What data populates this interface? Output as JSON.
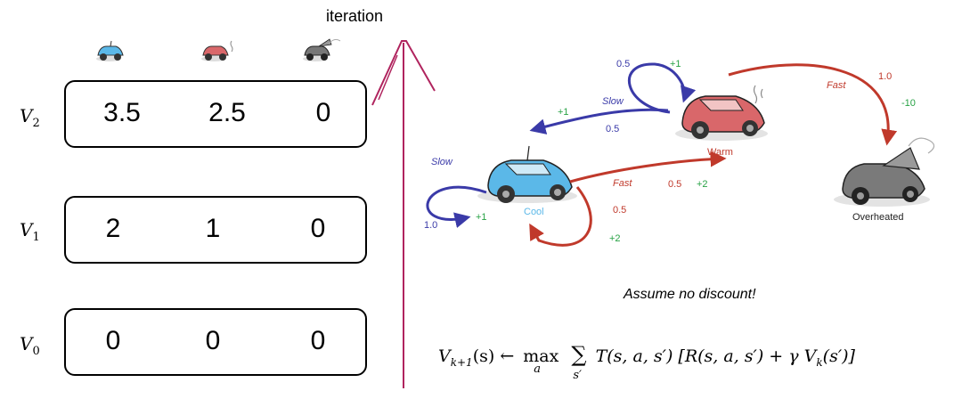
{
  "iteration_label": "iteration",
  "rows": [
    {
      "label": "V",
      "sub": "2",
      "values": [
        "3.5",
        "2.5",
        "0"
      ]
    },
    {
      "label": "V",
      "sub": "1",
      "values": [
        "2",
        "1",
        "0"
      ]
    },
    {
      "label": "V",
      "sub": "0",
      "values": [
        "0",
        "0",
        "0"
      ]
    }
  ],
  "states": {
    "cool": "Cool",
    "warm": "Warm",
    "overheated": "Overheated"
  },
  "actions": {
    "slow": "Slow",
    "fast": "Fast"
  },
  "edges": {
    "cool_slow_prob": "1.0",
    "cool_slow_reward": "+1",
    "cool_fast_prob1": "0.5",
    "cool_fast_reward1": "+2",
    "cool_fast_prob2": "0.5",
    "cool_fast_reward2": "+2",
    "warm_slow_prob1": "0.5",
    "warm_slow_reward1": "+1",
    "warm_slow_prob2": "0.5",
    "warm_slow_reward2": "+1",
    "warm_fast_prob": "1.0",
    "warm_fast_reward": "-10"
  },
  "note": "Assume no discount!",
  "formula": {
    "lhs": "V",
    "lhs_sub": "k+1",
    "lhs_arg": "(s) ← ",
    "max": "max",
    "max_sub": "a",
    "sum_sub": "s′",
    "body": "T(s, a, s′) [R(s, a, s′) + γ V",
    "body_sub": "k",
    "tail": "(s′)]"
  },
  "colors": {
    "blue": "#3a3aa8",
    "red": "#c0392b",
    "green": "#27a244",
    "divider": "#b0245e",
    "cool_car": "#5bb8e8",
    "warm_car": "#d9676a",
    "hot_car": "#7a7a7a"
  }
}
